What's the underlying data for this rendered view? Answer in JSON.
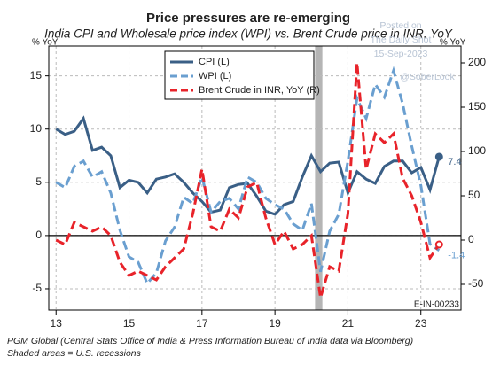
{
  "chart_data": {
    "type": "line",
    "title": "Price pressures are re-emerging",
    "subtitle": "India CPI and Wholesale price index (WPI) vs. Brent Crude price in INR, YoY",
    "y_label": "% YoY",
    "y2_label": "% YoY",
    "x": [
      13.0,
      13.25,
      13.5,
      13.75,
      14.0,
      14.25,
      14.5,
      14.75,
      15.0,
      15.25,
      15.5,
      15.75,
      16.0,
      16.25,
      16.5,
      16.75,
      17.0,
      17.25,
      17.5,
      17.75,
      18.0,
      18.25,
      18.5,
      18.75,
      19.0,
      19.25,
      19.5,
      19.75,
      20.0,
      20.25,
      20.5,
      20.75,
      21.0,
      21.25,
      21.5,
      21.75,
      22.0,
      22.25,
      22.5,
      22.75,
      23.0,
      23.25,
      23.5
    ],
    "series": [
      {
        "name": "CPI (L)",
        "color": "#3a5f86",
        "dash": "solid",
        "end_label": "7.4",
        "values": [
          10,
          9.5,
          9.8,
          11,
          8,
          8.3,
          7.5,
          4.5,
          5.2,
          5.0,
          4.0,
          5.3,
          5.5,
          5.8,
          5.0,
          4.0,
          3.2,
          2.2,
          2.4,
          4.5,
          4.8,
          4.9,
          3.7,
          2.3,
          2.0,
          2.9,
          3.2,
          5.5,
          7.5,
          6.0,
          6.8,
          6.9,
          4.0,
          6.0,
          5.3,
          4.9,
          6.5,
          7.0,
          7.0,
          5.9,
          6.4,
          4.3,
          7.4
        ]
      },
      {
        "name": "WPI (L)",
        "color": "#6a9fd0",
        "dash": "dashed",
        "end_label": "-1.4",
        "values": [
          5,
          4.5,
          6.5,
          7,
          5.5,
          6,
          4,
          0.5,
          -2.0,
          -2.5,
          -4.5,
          -3.5,
          -0.5,
          0.8,
          3.6,
          3.0,
          5.5,
          2.2,
          3.2,
          3.5,
          2.5,
          5.5,
          5.0,
          3.5,
          2.9,
          2.5,
          1.1,
          0.5,
          3.0,
          -3.4,
          0.4,
          2.0,
          7.0,
          12.9,
          11.0,
          14.2,
          13.0,
          15.5,
          12.4,
          8.4,
          4.7,
          -0.8,
          -1.4
        ]
      },
      {
        "name": "Brent Crude in INR, YoY (R)",
        "color": "#e8232a",
        "dash": "dashed",
        "axis": "y2",
        "values": [
          0,
          -5,
          20,
          15,
          10,
          15,
          5,
          -25,
          -40,
          -35,
          -40,
          -45,
          -30,
          -20,
          -10,
          30,
          80,
          15,
          10,
          35,
          25,
          60,
          65,
          25,
          -5,
          10,
          -10,
          -5,
          5,
          -65,
          -30,
          -35,
          30,
          200,
          80,
          120,
          110,
          120,
          70,
          50,
          20,
          -20,
          -5
        ]
      }
    ],
    "xlim": [
      12.8,
      24.1
    ],
    "xticks": [
      13,
      15,
      17,
      19,
      21,
      23
    ],
    "ylim": [
      -7,
      17.8
    ],
    "yticks": [
      -5,
      0,
      5,
      10,
      15
    ],
    "y2lim": [
      -79,
      219
    ],
    "y2ticks": [
      -50,
      0,
      50,
      100,
      150,
      200
    ],
    "recessions": [
      [
        20.1,
        20.3
      ]
    ],
    "grid": true,
    "code": "E-IN-00233",
    "watermark": [
      "Posted on",
      "The Daily Shot",
      "15-Sep-2023",
      "@SoberLook"
    ],
    "source": "PGM Global (Central Stats Office of India & Press Information Bureau of India data via Bloomberg)",
    "note": "Shaded areas = U.S. recessions"
  }
}
